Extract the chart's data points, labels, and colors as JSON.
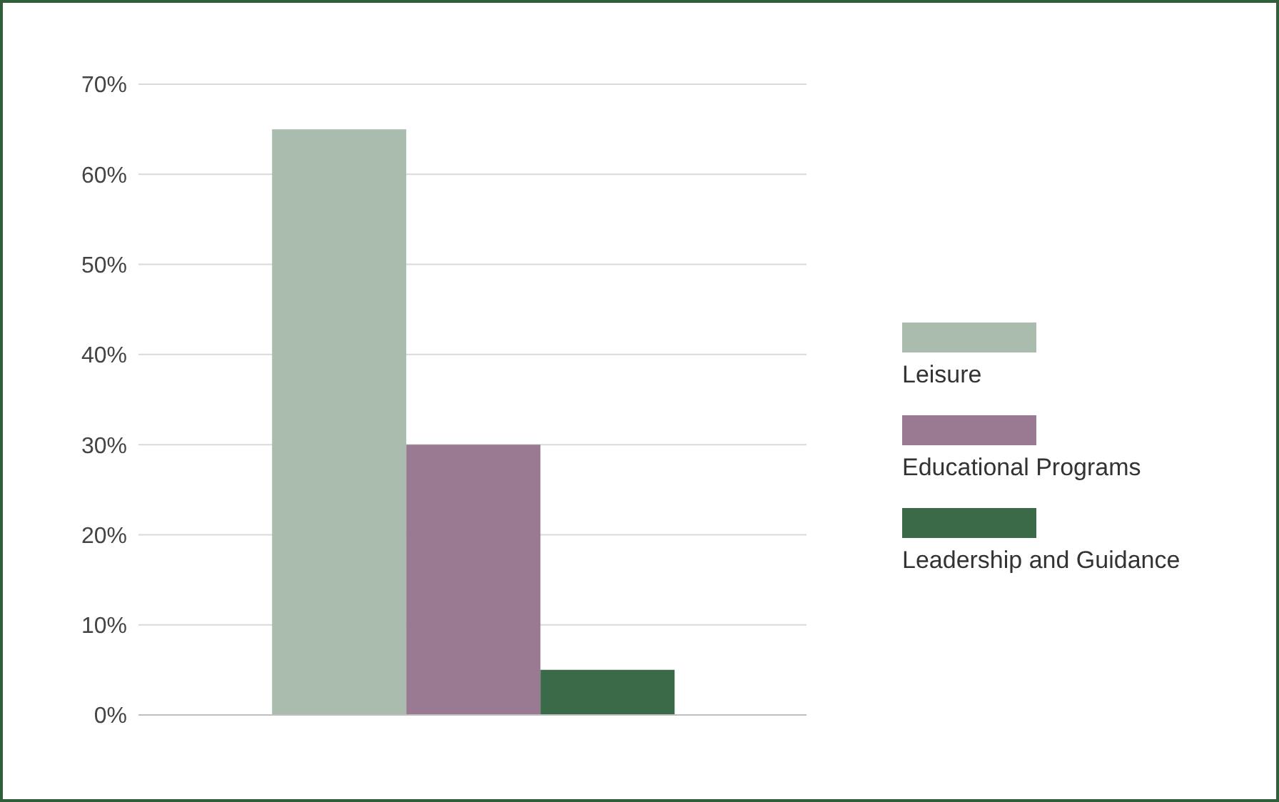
{
  "chart_data": {
    "type": "bar",
    "categories": [
      null
    ],
    "series": [
      {
        "name": "Leisure",
        "color": "#a9bcad",
        "values": [
          65
        ]
      },
      {
        "name": "Educational Programs",
        "color": "#9a7a93",
        "values": [
          30
        ]
      },
      {
        "name": "Leadership and Guidance",
        "color": "#3a6a47",
        "values": [
          5
        ]
      }
    ],
    "ylim": [
      0,
      70
    ],
    "yticks": [
      {
        "value": 0,
        "label": "0%"
      },
      {
        "value": 10,
        "label": "10%"
      },
      {
        "value": 20,
        "label": "20%"
      },
      {
        "value": 30,
        "label": "30%"
      },
      {
        "value": 40,
        "label": "40%"
      },
      {
        "value": 50,
        "label": "50%"
      },
      {
        "value": 60,
        "label": "60%"
      },
      {
        "value": 70,
        "label": "70%"
      }
    ],
    "grid": "y",
    "legend": "right",
    "tick_labels": "y"
  }
}
